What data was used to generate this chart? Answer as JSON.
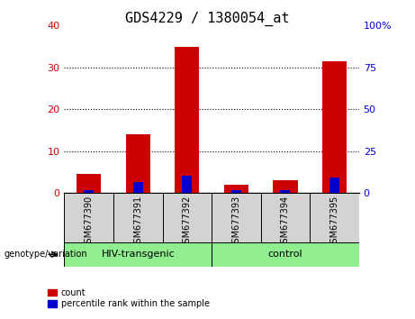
{
  "title": "GDS4229 / 1380054_at",
  "samples": [
    "GSM677390",
    "GSM677391",
    "GSM677392",
    "GSM677393",
    "GSM677394",
    "GSM677395"
  ],
  "red_values": [
    4.5,
    14.0,
    35.0,
    2.0,
    3.0,
    31.5
  ],
  "blue_values": [
    1.5,
    6.5,
    10.5,
    1.5,
    1.5,
    9.5
  ],
  "groups": [
    {
      "label": "HIV-transgenic",
      "start": 0,
      "end": 3
    },
    {
      "label": "control",
      "start": 3,
      "end": 6
    }
  ],
  "group_color": "#90EE90",
  "left_ylim": [
    0,
    40
  ],
  "right_ylim": [
    0,
    100
  ],
  "left_yticks": [
    0,
    10,
    20,
    30,
    40
  ],
  "right_yticks": [
    0,
    25,
    50,
    75,
    100
  ],
  "left_ycolor": "#cc0000",
  "right_ycolor": "#0000cc",
  "bar_width": 0.5,
  "blue_bar_width": 0.2,
  "red_color": "#cc0000",
  "blue_color": "#0000cc",
  "bg_plot": "#ffffff",
  "bg_labels": "#d3d3d3",
  "genotype_label": "genotype/variation",
  "legend_count": "count",
  "legend_percentile": "percentile rank within the sample",
  "title_fontsize": 11,
  "tick_fontsize": 8,
  "label_fontsize": 7,
  "group_fontsize": 8
}
